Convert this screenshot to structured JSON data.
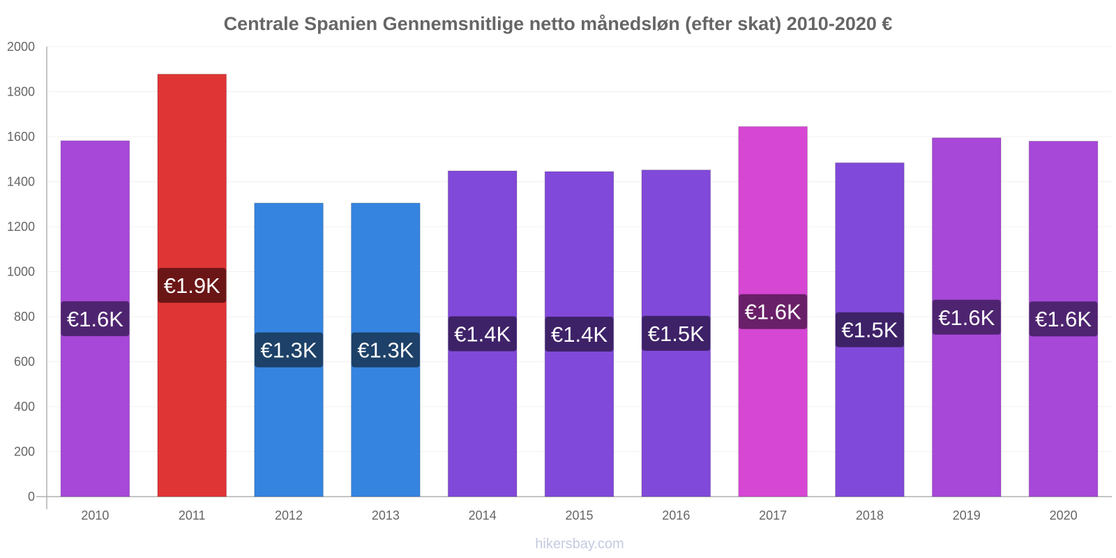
{
  "chart_data": {
    "type": "bar",
    "title": "Centrale Spanien Gennemsnitlige netto månedsløn (efter skat) 2010-2020 €",
    "xlabel": "",
    "ylabel": "",
    "ylim": [
      0,
      2000
    ],
    "yticks": [
      0,
      200,
      400,
      600,
      800,
      1000,
      1200,
      1400,
      1600,
      1800,
      2000
    ],
    "ytick_labels": [
      "0",
      "200",
      "400",
      "600",
      "800",
      "1000",
      "1200",
      "1400",
      "1600",
      "1800",
      "2000"
    ],
    "categories": [
      "2010",
      "2011",
      "2012",
      "2013",
      "2014",
      "2015",
      "2016",
      "2017",
      "2018",
      "2019",
      "2020"
    ],
    "values": [
      1582,
      1878,
      1305,
      1305,
      1448,
      1445,
      1452,
      1645,
      1484,
      1595,
      1580
    ],
    "data_labels": [
      "€1.6K",
      "€1.9K",
      "€1.3K",
      "€1.3K",
      "€1.4K",
      "€1.4K",
      "€1.5K",
      "€1.6K",
      "€1.5K",
      "€1.6K",
      "€1.6K"
    ],
    "bar_colors": [
      "#a748d8",
      "#e03535",
      "#3584e0",
      "#3584e0",
      "#8149d9",
      "#8149d9",
      "#8149d9",
      "#d647d4",
      "#8149d9",
      "#a748d8",
      "#a748d8"
    ],
    "label_bg_colors": [
      "#4e2470",
      "#6b1616",
      "#1d4168",
      "#1d4168",
      "#3e2268",
      "#3e2268",
      "#3e2268",
      "#6a2068",
      "#3e2268",
      "#4e2470",
      "#4e2470"
    ],
    "grid": true,
    "legend": "none"
  },
  "footer": {
    "watermark": "hikersbay.com"
  }
}
